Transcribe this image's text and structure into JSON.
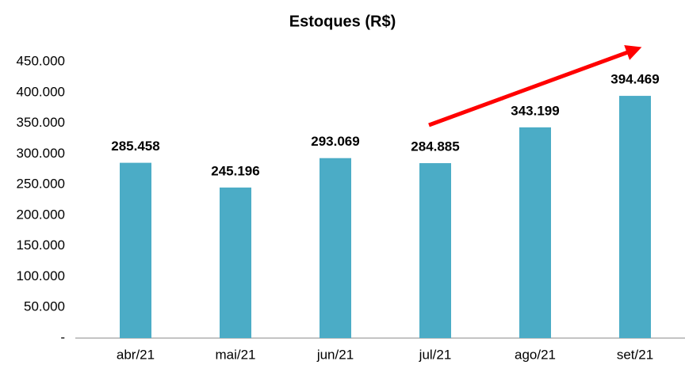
{
  "chart_data": {
    "type": "bar",
    "title": "Estoques (R$)",
    "categories": [
      "abr/21",
      "mai/21",
      "jun/21",
      "jul/21",
      "ago/21",
      "set/21"
    ],
    "values": [
      285458,
      245196,
      293069,
      284885,
      343199,
      394469
    ],
    "value_labels": [
      "285.458",
      "245.196",
      "293.069",
      "284.885",
      "343.199",
      "394.469"
    ],
    "color": "#4bacc6",
    "ylim": [
      0,
      450000
    ],
    "yticks": [
      {
        "value": 0,
        "label": "-"
      },
      {
        "value": 50000,
        "label": "50.000"
      },
      {
        "value": 100000,
        "label": "100.000"
      },
      {
        "value": 150000,
        "label": "150.000"
      },
      {
        "value": 200000,
        "label": "200.000"
      },
      {
        "value": 250000,
        "label": "250.000"
      },
      {
        "value": 300000,
        "label": "300.000"
      },
      {
        "value": 350000,
        "label": "350.000"
      },
      {
        "value": 400000,
        "label": "400.000"
      },
      {
        "value": 450000,
        "label": "450.000"
      }
    ],
    "grid": false
  }
}
